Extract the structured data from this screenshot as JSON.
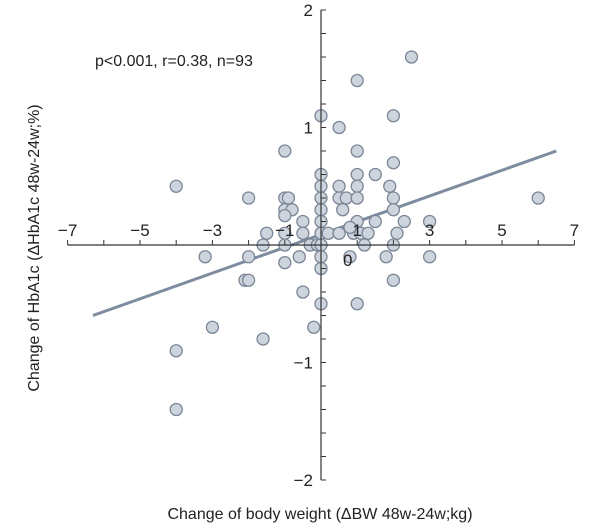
{
  "chart_data": {
    "type": "scatter",
    "annotation": "p<0.001, r=0.38, n=93",
    "xlabel": "Change of body weight (ΔBW 48w-24w;kg)",
    "ylabel": "Change of HbA1c (ΔHbA1c 48w-24w;%)",
    "xlim": [
      -7,
      7
    ],
    "ylim": [
      -2,
      2
    ],
    "x_ticks": [
      -7,
      -5,
      -3,
      -1,
      1,
      3,
      5,
      7
    ],
    "x_tick_labels": [
      "−7",
      "−5",
      "−3",
      "−1",
      "1",
      "3",
      "5",
      "7"
    ],
    "y_ticks": [
      2,
      1,
      -1,
      -2
    ],
    "y_tick_labels": [
      "2",
      "1",
      "−1",
      "−2"
    ],
    "origin_label": "0",
    "grid": false,
    "regression_line": {
      "x": [
        -6.3,
        6.5
      ],
      "y": [
        -0.6,
        0.8
      ]
    },
    "points": [
      {
        "x": 2.5,
        "y": 1.6
      },
      {
        "x": 1.0,
        "y": 1.4
      },
      {
        "x": 0.0,
        "y": 1.1
      },
      {
        "x": 0.5,
        "y": 1.0
      },
      {
        "x": 2.0,
        "y": 1.1
      },
      {
        "x": -1.0,
        "y": 0.8
      },
      {
        "x": 1.0,
        "y": 0.8
      },
      {
        "x": 2.0,
        "y": 0.7
      },
      {
        "x": 0.0,
        "y": 0.6
      },
      {
        "x": 1.0,
        "y": 0.6
      },
      {
        "x": 1.5,
        "y": 0.6
      },
      {
        "x": -4.0,
        "y": 0.5
      },
      {
        "x": 0.0,
        "y": 0.5
      },
      {
        "x": 0.5,
        "y": 0.5
      },
      {
        "x": 1.0,
        "y": 0.5
      },
      {
        "x": 1.9,
        "y": 0.5
      },
      {
        "x": -2.0,
        "y": 0.4
      },
      {
        "x": -1.0,
        "y": 0.4
      },
      {
        "x": -0.9,
        "y": 0.4
      },
      {
        "x": 0.0,
        "y": 0.4
      },
      {
        "x": 0.5,
        "y": 0.4
      },
      {
        "x": 0.7,
        "y": 0.4
      },
      {
        "x": 1.0,
        "y": 0.4
      },
      {
        "x": 2.0,
        "y": 0.4
      },
      {
        "x": 6.0,
        "y": 0.4
      },
      {
        "x": -1.0,
        "y": 0.3
      },
      {
        "x": -0.8,
        "y": 0.3
      },
      {
        "x": 0.0,
        "y": 0.3
      },
      {
        "x": 0.6,
        "y": 0.3
      },
      {
        "x": 2.0,
        "y": 0.3
      },
      {
        "x": -0.5,
        "y": 0.2
      },
      {
        "x": 0.0,
        "y": 0.2
      },
      {
        "x": 1.0,
        "y": 0.2
      },
      {
        "x": 1.5,
        "y": 0.2
      },
      {
        "x": 2.3,
        "y": 0.2
      },
      {
        "x": 3.0,
        "y": 0.2
      },
      {
        "x": -1.5,
        "y": 0.1
      },
      {
        "x": -1.0,
        "y": 0.1
      },
      {
        "x": -0.5,
        "y": 0.1
      },
      {
        "x": 0.0,
        "y": 0.1
      },
      {
        "x": 0.2,
        "y": 0.1
      },
      {
        "x": 0.5,
        "y": 0.1
      },
      {
        "x": 0.9,
        "y": 0.1
      },
      {
        "x": 1.1,
        "y": 0.1
      },
      {
        "x": 1.3,
        "y": 0.1
      },
      {
        "x": 2.1,
        "y": 0.1
      },
      {
        "x": -1.6,
        "y": 0.0
      },
      {
        "x": -1.0,
        "y": 0.0
      },
      {
        "x": -0.3,
        "y": 0.0
      },
      {
        "x": -0.1,
        "y": 0.0
      },
      {
        "x": 0.0,
        "y": 0.0
      },
      {
        "x": 2.0,
        "y": 0.0
      },
      {
        "x": -3.2,
        "y": -0.1
      },
      {
        "x": -2.0,
        "y": -0.1
      },
      {
        "x": -0.6,
        "y": -0.1
      },
      {
        "x": 0.0,
        "y": -0.1
      },
      {
        "x": 0.8,
        "y": -0.1
      },
      {
        "x": 1.8,
        "y": -0.1
      },
      {
        "x": 3.0,
        "y": -0.1
      },
      {
        "x": -1.0,
        "y": -0.15
      },
      {
        "x": 0.0,
        "y": -0.2
      },
      {
        "x": -2.1,
        "y": -0.3
      },
      {
        "x": -2.0,
        "y": -0.3
      },
      {
        "x": 2.0,
        "y": -0.3
      },
      {
        "x": -0.5,
        "y": -0.4
      },
      {
        "x": 0.0,
        "y": -0.5
      },
      {
        "x": 1.0,
        "y": -0.5
      },
      {
        "x": -0.2,
        "y": -0.7
      },
      {
        "x": -3.0,
        "y": -0.7
      },
      {
        "x": -1.6,
        "y": -0.8
      },
      {
        "x": -4.0,
        "y": -0.9
      },
      {
        "x": -4.0,
        "y": -1.4
      },
      {
        "x": -1.0,
        "y": 0.25
      },
      {
        "x": 0.8,
        "y": 0.15
      },
      {
        "x": 1.2,
        "y": 0.0
      }
    ]
  }
}
